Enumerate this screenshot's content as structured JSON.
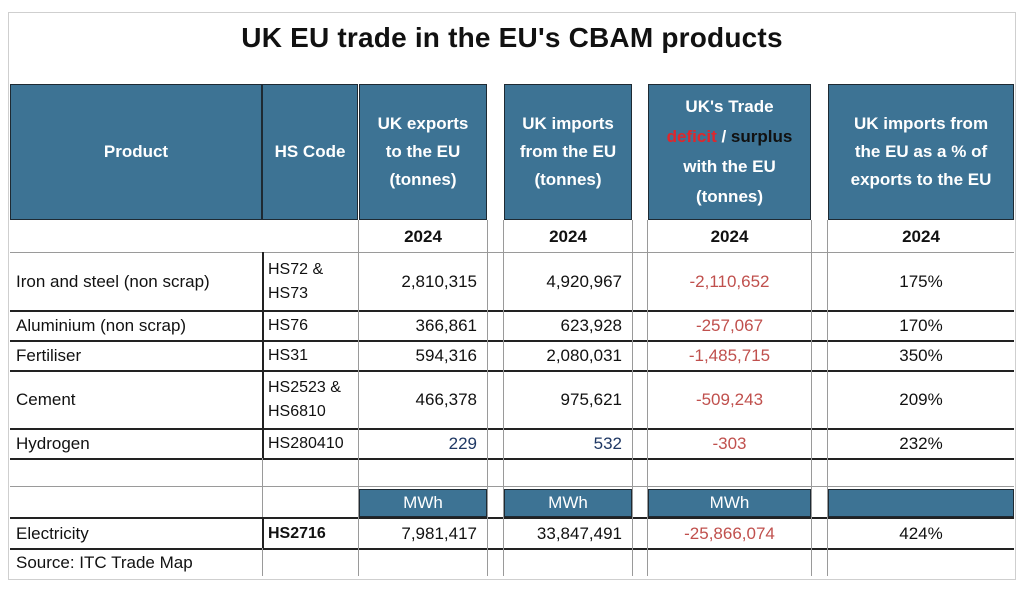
{
  "title": "UK EU trade in the EU's CBAM products",
  "headers": {
    "product": "Product",
    "hs_code": "HS Code",
    "exports": [
      "UK exports",
      "to the EU",
      "(tonnes)"
    ],
    "imports": [
      "UK imports",
      "from the EU",
      "(tonnes)"
    ],
    "balance_line1": "UK's Trade",
    "balance_deficit": "deficit",
    "balance_sep": " / ",
    "balance_surplus": "surplus",
    "balance_line3": "with the EU",
    "balance_line4": "(tonnes)",
    "ratio": [
      "UK imports from",
      "the EU as a % of",
      "exports to the EU"
    ]
  },
  "year_row": {
    "exports": "2024",
    "imports": "2024",
    "balance": "2024",
    "ratio": "2024"
  },
  "rows": [
    {
      "product": "Iron and steel (non scrap)",
      "hs": [
        "HS72 &",
        "HS73"
      ],
      "exports": "2,810,315",
      "imports": "4,920,967",
      "balance": "-2,110,652",
      "ratio": "175%"
    },
    {
      "product": "Aluminium (non scrap)",
      "hs": [
        "HS76"
      ],
      "exports": "366,861",
      "imports": "623,928",
      "balance": "-257,067",
      "ratio": "170%"
    },
    {
      "product": "Fertiliser",
      "hs": [
        "HS31"
      ],
      "exports": "594,316",
      "imports": "2,080,031",
      "balance": "-1,485,715",
      "ratio": "350%"
    },
    {
      "product": "Cement",
      "hs": [
        "HS2523 &",
        "HS6810"
      ],
      "exports": "466,378",
      "imports": "975,621",
      "balance": "-509,243",
      "ratio": "209%"
    },
    {
      "product": "Hydrogen",
      "hs": [
        "HS280410"
      ],
      "exports": "229",
      "imports": "532",
      "balance": "-303",
      "ratio": "232%"
    }
  ],
  "units_row": {
    "exports": "MWh",
    "imports": "MWh",
    "balance": "MWh",
    "ratio": ""
  },
  "electricity": {
    "product": "Electricity",
    "hs": "HS2716",
    "exports": "7,981,417",
    "imports": "33,847,491",
    "balance": "-25,866,074",
    "ratio": "424%"
  },
  "source": "Source: ITC Trade Map",
  "colors": {
    "header_bg": "#3d7394",
    "negative": "#c0504d",
    "deficit_label": "#e0262b",
    "small_values": "#1f3864"
  }
}
